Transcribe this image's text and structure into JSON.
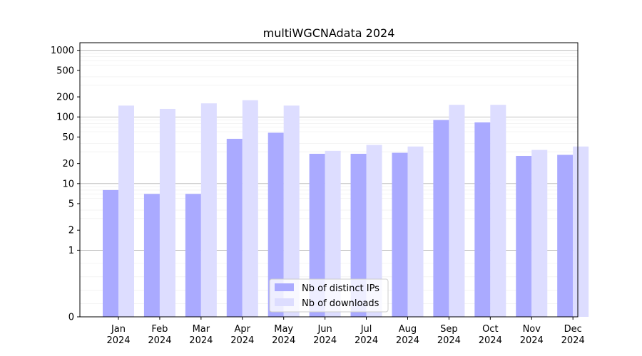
{
  "chart_data": {
    "type": "bar",
    "title": "multiWGCNAdata 2024",
    "xlabel": "",
    "ylabel": "",
    "y_scale": "symlog",
    "y_ticks": [
      0,
      1,
      2,
      5,
      10,
      20,
      50,
      100,
      200,
      500,
      1000
    ],
    "y_tick_labels": [
      "0",
      "1",
      "2",
      "5",
      "10",
      "20",
      "50",
      "100",
      "200",
      "500",
      "1000"
    ],
    "ylim": [
      0,
      1300
    ],
    "grid": true,
    "legend_position": "lower center",
    "categories": [
      [
        "Jan",
        "2024"
      ],
      [
        "Feb",
        "2024"
      ],
      [
        "Mar",
        "2024"
      ],
      [
        "Apr",
        "2024"
      ],
      [
        "May",
        "2024"
      ],
      [
        "Jun",
        "2024"
      ],
      [
        "Jul",
        "2024"
      ],
      [
        "Aug",
        "2024"
      ],
      [
        "Sep",
        "2024"
      ],
      [
        "Oct",
        "2024"
      ],
      [
        "Nov",
        "2024"
      ],
      [
        "Dec",
        "2024"
      ]
    ],
    "series": [
      {
        "name": "Nb of distinct IPs",
        "color": "#aaaaff",
        "values": [
          8,
          7,
          7,
          47,
          58,
          28,
          28,
          29,
          90,
          83,
          26,
          27
        ]
      },
      {
        "name": "Nb of downloads",
        "color": "#ddddff",
        "values": [
          148,
          132,
          160,
          178,
          148,
          31,
          38,
          36,
          152,
          152,
          32,
          36
        ]
      }
    ]
  }
}
